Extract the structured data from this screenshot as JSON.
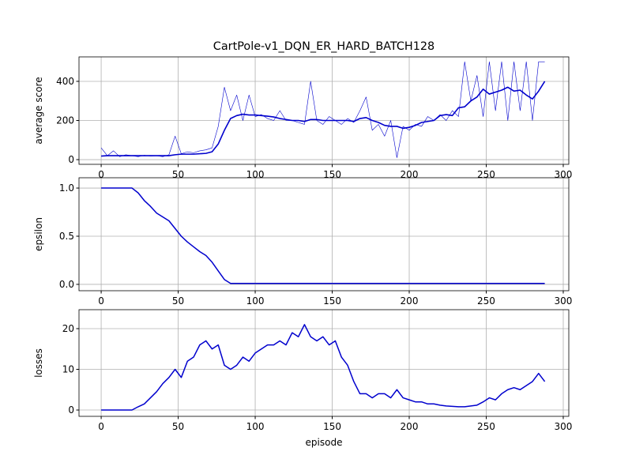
{
  "chart_data": [
    {
      "type": "line",
      "title": "CartPole-v1_DQN_ER_HARD_BATCH128",
      "ylabel": "average score",
      "x": [
        0,
        4,
        8,
        12,
        16,
        20,
        24,
        28,
        32,
        36,
        40,
        44,
        48,
        52,
        56,
        60,
        64,
        68,
        72,
        76,
        80,
        84,
        88,
        92,
        96,
        100,
        104,
        108,
        112,
        116,
        120,
        124,
        128,
        132,
        136,
        140,
        144,
        148,
        152,
        156,
        160,
        164,
        168,
        172,
        176,
        180,
        184,
        188,
        192,
        196,
        200,
        204,
        208,
        212,
        216,
        220,
        224,
        228,
        232,
        236,
        240,
        244,
        248,
        252,
        256,
        260,
        264,
        268,
        272,
        276,
        280,
        284,
        288
      ],
      "series": [
        {
          "color": "#0000cd",
          "linewidth": 0.6,
          "values": [
            60,
            20,
            45,
            15,
            25,
            20,
            15,
            22,
            18,
            20,
            15,
            25,
            120,
            30,
            40,
            35,
            45,
            50,
            60,
            170,
            370,
            250,
            330,
            200,
            330,
            220,
            230,
            210,
            200,
            250,
            200,
            200,
            190,
            180,
            400,
            200,
            180,
            220,
            200,
            180,
            210,
            190,
            250,
            320,
            150,
            180,
            120,
            200,
            10,
            170,
            150,
            180,
            170,
            220,
            200,
            230,
            200,
            250,
            220,
            500,
            300,
            430,
            220,
            500,
            250,
            500,
            200,
            500,
            250,
            500,
            200,
            500,
            500
          ]
        },
        {
          "color": "#0000cd",
          "linewidth": 1.6,
          "values": [
            18,
            20,
            20,
            20,
            20,
            20,
            20,
            20,
            20,
            20,
            20,
            20,
            25,
            28,
            28,
            28,
            30,
            32,
            40,
            80,
            150,
            210,
            225,
            232,
            228,
            228,
            225,
            222,
            218,
            210,
            205,
            200,
            200,
            195,
            205,
            205,
            200,
            200,
            200,
            200,
            200,
            195,
            210,
            215,
            200,
            190,
            175,
            170,
            170,
            160,
            165,
            175,
            190,
            195,
            200,
            225,
            230,
            225,
            265,
            270,
            300,
            320,
            360,
            335,
            345,
            355,
            370,
            350,
            355,
            330,
            310,
            350,
            400
          ]
        }
      ],
      "xlim": [
        -14.4,
        303.6
      ],
      "xticks": [
        0,
        50,
        100,
        150,
        200,
        250,
        300
      ],
      "ylim": [
        -24,
        525
      ],
      "yticks": [
        0,
        200,
        400
      ],
      "grid": true
    },
    {
      "type": "line",
      "ylabel": "epsilon",
      "x": [
        0,
        4,
        8,
        12,
        16,
        20,
        24,
        28,
        32,
        36,
        40,
        44,
        48,
        52,
        56,
        60,
        64,
        68,
        72,
        76,
        80,
        84,
        88,
        92,
        96,
        100,
        104,
        108,
        112,
        116,
        120,
        124,
        128,
        132,
        136,
        140,
        144,
        148,
        152,
        156,
        160,
        164,
        168,
        172,
        176,
        180,
        184,
        188,
        192,
        196,
        200,
        204,
        208,
        212,
        216,
        220,
        224,
        228,
        232,
        236,
        240,
        244,
        248,
        252,
        256,
        260,
        264,
        268,
        272,
        276,
        280,
        284,
        288
      ],
      "series": [
        {
          "color": "#0000cd",
          "linewidth": 1.5,
          "values": [
            1,
            1,
            1,
            1,
            1,
            1,
            0.95,
            0.87,
            0.81,
            0.74,
            0.7,
            0.66,
            0.58,
            0.5,
            0.44,
            0.39,
            0.34,
            0.3,
            0.23,
            0.14,
            0.05,
            0.01,
            0.01,
            0.01,
            0.01,
            0.01,
            0.01,
            0.01,
            0.01,
            0.01,
            0.01,
            0.01,
            0.01,
            0.01,
            0.01,
            0.01,
            0.01,
            0.01,
            0.01,
            0.01,
            0.01,
            0.01,
            0.01,
            0.01,
            0.01,
            0.01,
            0.01,
            0.01,
            0.01,
            0.01,
            0.01,
            0.01,
            0.01,
            0.01,
            0.01,
            0.01,
            0.01,
            0.01,
            0.01,
            0.01,
            0.01,
            0.01,
            0.01,
            0.01,
            0.01,
            0.01,
            0.01,
            0.01,
            0.01,
            0.01,
            0.01,
            0.01,
            0.01
          ]
        }
      ],
      "xlim": [
        -14.4,
        303.6
      ],
      "xticks": [
        0,
        50,
        100,
        150,
        200,
        250,
        300
      ],
      "ylim": [
        -0.066,
        1.107
      ],
      "yticks": [
        {
          "value": 0,
          "label": "0.0"
        },
        0.5,
        {
          "value": 1,
          "label": "1.0"
        }
      ],
      "grid": true
    },
    {
      "type": "line",
      "ylabel": "losses",
      "xlabel": "episode",
      "x": [
        0,
        4,
        8,
        12,
        16,
        20,
        24,
        28,
        32,
        36,
        40,
        44,
        48,
        52,
        56,
        60,
        64,
        68,
        72,
        76,
        80,
        84,
        88,
        92,
        96,
        100,
        104,
        108,
        112,
        116,
        120,
        124,
        128,
        132,
        136,
        140,
        144,
        148,
        152,
        156,
        160,
        164,
        168,
        172,
        176,
        180,
        184,
        188,
        192,
        196,
        200,
        204,
        208,
        212,
        216,
        220,
        224,
        228,
        232,
        236,
        240,
        244,
        248,
        252,
        256,
        260,
        264,
        268,
        272,
        276,
        280,
        284,
        288
      ],
      "series": [
        {
          "color": "#0000cd",
          "linewidth": 1.5,
          "values": [
            0,
            0,
            0,
            0,
            0,
            0,
            0.8,
            1.5,
            3,
            4.5,
            6.5,
            8,
            10,
            8,
            12,
            13,
            16,
            17,
            15,
            16,
            11,
            10,
            11,
            13,
            12,
            14,
            15,
            16,
            16,
            17,
            16,
            19,
            18,
            21,
            18,
            17,
            18,
            16,
            17,
            13,
            11,
            7,
            4,
            4,
            3,
            4,
            4,
            3,
            5,
            3,
            2.5,
            2,
            2,
            1.5,
            1.5,
            1.2,
            1,
            0.9,
            0.8,
            0.8,
            1,
            1.2,
            2,
            3,
            2.5,
            4,
            5,
            5.5,
            5,
            6,
            7,
            9,
            7
          ]
        }
      ],
      "xlim": [
        -14.4,
        303.6
      ],
      "xticks": [
        0,
        50,
        100,
        150,
        200,
        250,
        300
      ],
      "ylim": [
        -1.55,
        24.66
      ],
      "yticks": [
        0,
        10,
        20
      ],
      "grid": true
    }
  ]
}
